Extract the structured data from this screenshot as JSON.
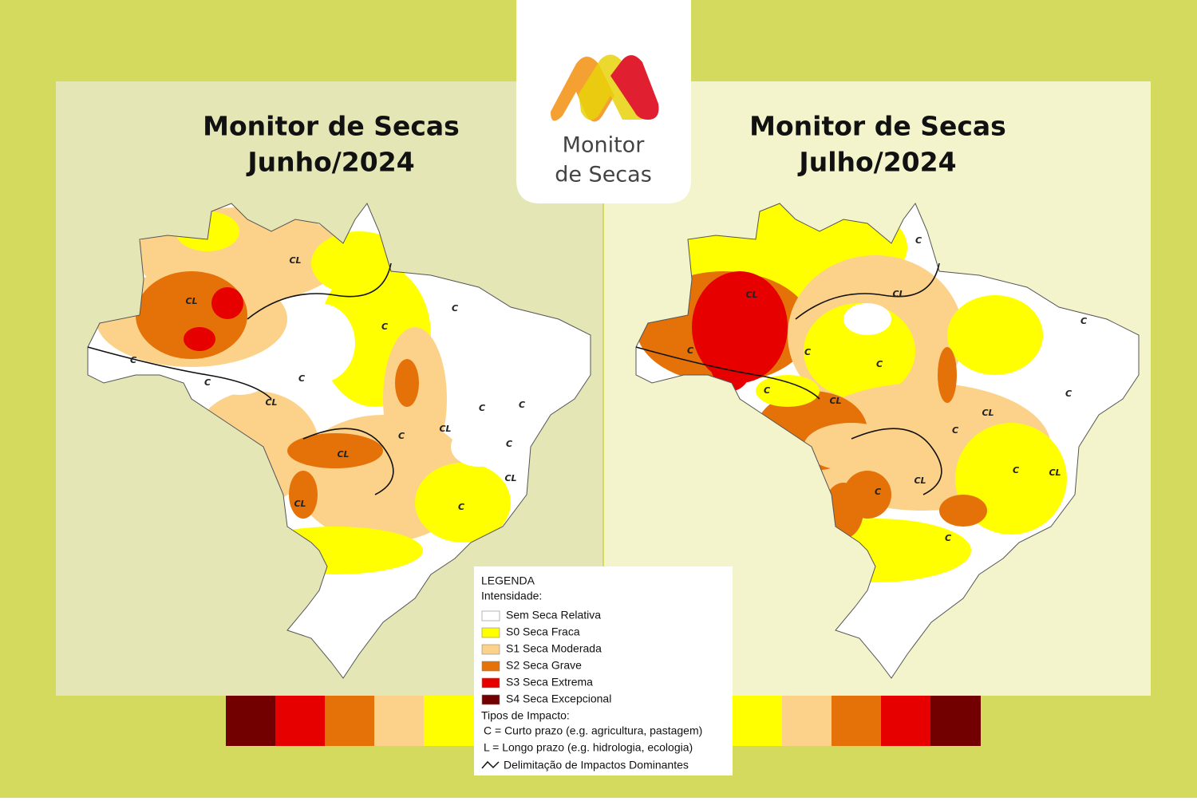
{
  "logo": {
    "line1": "Monitor",
    "line2": "de Secas"
  },
  "maps": [
    {
      "title_line1": "Monitor de Secas",
      "title_line2": "Junho/2024",
      "impact_labels": [
        "CL",
        "C",
        "C",
        "C",
        "CL",
        "C",
        "C",
        "CL",
        "CL",
        "C",
        "CL",
        "C",
        "C",
        "C",
        "CL",
        "CL",
        "C"
      ]
    },
    {
      "title_line1": "Monitor de Secas",
      "title_line2": "Julho/2024",
      "impact_labels": [
        "CL",
        "C",
        "CL",
        "C",
        "C",
        "C",
        "C",
        "C",
        "CL",
        "C",
        "CL",
        "C",
        "C",
        "C",
        "CL",
        "CL",
        "C"
      ]
    }
  ],
  "legend": {
    "title": "LEGENDA",
    "intensity_heading": "Intensidade:",
    "items": [
      {
        "label": "Sem Seca Relativa",
        "color": "#ffffff"
      },
      {
        "label": "S0 Seca Fraca",
        "color": "#ffff00"
      },
      {
        "label": "S1 Seca Moderada",
        "color": "#fcd28a"
      },
      {
        "label": "S2 Seca Grave",
        "color": "#e47208"
      },
      {
        "label": "S3 Seca Extrema",
        "color": "#e60000"
      },
      {
        "label": "S4 Seca Excepcional",
        "color": "#730000"
      }
    ],
    "impact_heading": "Tipos de Impacto:",
    "impact_types": [
      "C = Curto prazo (e.g. agricultura, pastagem)",
      "L = Longo prazo (e.g. hidrologia, ecologia)"
    ],
    "boundary": "Delimitação de Impactos Dominantes"
  }
}
